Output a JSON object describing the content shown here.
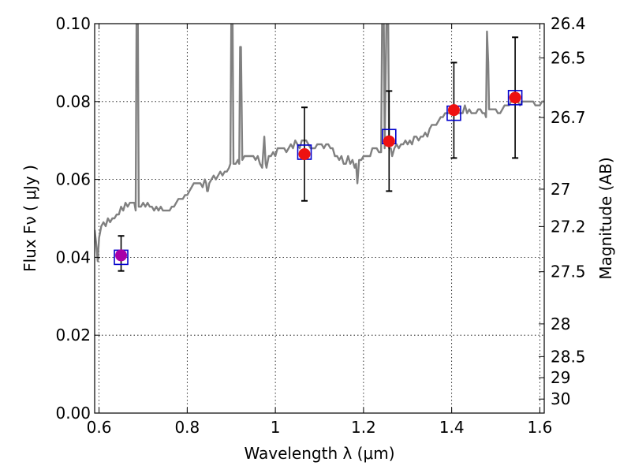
{
  "chart_data": {
    "type": "scatter",
    "xlabel": "Wavelength  λ (μm)",
    "ylabel": "Flux  Fν  ( μJy )",
    "y2label": "Magnitude (AB)",
    "xlim": [
      0.59,
      1.61
    ],
    "ylim": [
      0.0,
      0.1
    ],
    "grid": true,
    "x_ticks": [
      0.6,
      0.8,
      1.0,
      1.2,
      1.4,
      1.6
    ],
    "x_tick_labels": [
      "0.6",
      "0.8",
      "1",
      "1.2",
      "1.4",
      "1.6"
    ],
    "y_ticks": [
      0.0,
      0.02,
      0.04,
      0.06,
      0.08,
      0.1
    ],
    "y_tick_labels": [
      "0.00",
      "0.02",
      "0.04",
      "0.06",
      "0.08",
      "0.10"
    ],
    "y2_ticks": [
      {
        "label": "26.4",
        "flux": 0.1
      },
      {
        "label": "26.5",
        "flux": 0.0912
      },
      {
        "label": "26.7",
        "flux": 0.0759
      },
      {
        "label": "27",
        "flux": 0.0575
      },
      {
        "label": "27.2",
        "flux": 0.0479
      },
      {
        "label": "27.5",
        "flux": 0.0363
      },
      {
        "label": "28",
        "flux": 0.0229
      },
      {
        "label": "28.5",
        "flux": 0.0145
      },
      {
        "label": "29",
        "flux": 0.0091
      },
      {
        "label": "30",
        "flux": 0.0036
      }
    ],
    "model_spectrum": {
      "color": "#808080",
      "points": [
        [
          0.59,
          0.047
        ],
        [
          0.593,
          0.044
        ],
        [
          0.597,
          0.039
        ],
        [
          0.6,
          0.045
        ],
        [
          0.605,
          0.048
        ],
        [
          0.61,
          0.049
        ],
        [
          0.615,
          0.048
        ],
        [
          0.62,
          0.05
        ],
        [
          0.625,
          0.049
        ],
        [
          0.63,
          0.05
        ],
        [
          0.635,
          0.05
        ],
        [
          0.64,
          0.051
        ],
        [
          0.645,
          0.051
        ],
        [
          0.65,
          0.053
        ],
        [
          0.655,
          0.052
        ],
        [
          0.66,
          0.054
        ],
        [
          0.665,
          0.053
        ],
        [
          0.67,
          0.054
        ],
        [
          0.675,
          0.054
        ],
        [
          0.68,
          0.054
        ],
        [
          0.683,
          0.052
        ],
        [
          0.685,
          0.1
        ],
        [
          0.688,
          0.1
        ],
        [
          0.69,
          0.053
        ],
        [
          0.695,
          0.053
        ],
        [
          0.7,
          0.054
        ],
        [
          0.705,
          0.053
        ],
        [
          0.71,
          0.054
        ],
        [
          0.715,
          0.053
        ],
        [
          0.72,
          0.053
        ],
        [
          0.725,
          0.052
        ],
        [
          0.73,
          0.053
        ],
        [
          0.735,
          0.052
        ],
        [
          0.74,
          0.053
        ],
        [
          0.745,
          0.052
        ],
        [
          0.75,
          0.052
        ],
        [
          0.755,
          0.052
        ],
        [
          0.76,
          0.052
        ],
        [
          0.765,
          0.053
        ],
        [
          0.77,
          0.053
        ],
        [
          0.775,
          0.054
        ],
        [
          0.78,
          0.055
        ],
        [
          0.785,
          0.055
        ],
        [
          0.79,
          0.055
        ],
        [
          0.795,
          0.056
        ],
        [
          0.8,
          0.056
        ],
        [
          0.805,
          0.057
        ],
        [
          0.81,
          0.058
        ],
        [
          0.815,
          0.059
        ],
        [
          0.82,
          0.059
        ],
        [
          0.825,
          0.059
        ],
        [
          0.83,
          0.059
        ],
        [
          0.835,
          0.058
        ],
        [
          0.84,
          0.06
        ],
        [
          0.843,
          0.059
        ],
        [
          0.845,
          0.057
        ],
        [
          0.847,
          0.057
        ],
        [
          0.85,
          0.059
        ],
        [
          0.855,
          0.06
        ],
        [
          0.86,
          0.061
        ],
        [
          0.865,
          0.06
        ],
        [
          0.87,
          0.061
        ],
        [
          0.875,
          0.062
        ],
        [
          0.88,
          0.061
        ],
        [
          0.885,
          0.062
        ],
        [
          0.89,
          0.062
        ],
        [
          0.895,
          0.063
        ],
        [
          0.898,
          0.064
        ],
        [
          0.9,
          0.1
        ],
        [
          0.903,
          0.1
        ],
        [
          0.905,
          0.064
        ],
        [
          0.91,
          0.064
        ],
        [
          0.915,
          0.065
        ],
        [
          0.918,
          0.064
        ],
        [
          0.92,
          0.094
        ],
        [
          0.922,
          0.094
        ],
        [
          0.925,
          0.065
        ],
        [
          0.93,
          0.066
        ],
        [
          0.935,
          0.066
        ],
        [
          0.94,
          0.066
        ],
        [
          0.945,
          0.066
        ],
        [
          0.95,
          0.066
        ],
        [
          0.955,
          0.065
        ],
        [
          0.96,
          0.066
        ],
        [
          0.965,
          0.064
        ],
        [
          0.97,
          0.063
        ],
        [
          0.975,
          0.071
        ],
        [
          0.978,
          0.064
        ],
        [
          0.98,
          0.063
        ],
        [
          0.985,
          0.066
        ],
        [
          0.99,
          0.066
        ],
        [
          0.995,
          0.067
        ],
        [
          1.0,
          0.066
        ],
        [
          1.005,
          0.068
        ],
        [
          1.01,
          0.068
        ],
        [
          1.015,
          0.068
        ],
        [
          1.02,
          0.068
        ],
        [
          1.025,
          0.067
        ],
        [
          1.03,
          0.068
        ],
        [
          1.035,
          0.069
        ],
        [
          1.04,
          0.068
        ],
        [
          1.045,
          0.07
        ],
        [
          1.05,
          0.069
        ],
        [
          1.055,
          0.068
        ],
        [
          1.06,
          0.07
        ],
        [
          1.065,
          0.07
        ],
        [
          1.07,
          0.07
        ],
        [
          1.075,
          0.069
        ],
        [
          1.08,
          0.068
        ],
        [
          1.085,
          0.068
        ],
        [
          1.09,
          0.068
        ],
        [
          1.095,
          0.069
        ],
        [
          1.1,
          0.069
        ],
        [
          1.105,
          0.069
        ],
        [
          1.11,
          0.068
        ],
        [
          1.115,
          0.069
        ],
        [
          1.12,
          0.069
        ],
        [
          1.125,
          0.068
        ],
        [
          1.13,
          0.068
        ],
        [
          1.135,
          0.066
        ],
        [
          1.14,
          0.066
        ],
        [
          1.145,
          0.065
        ],
        [
          1.15,
          0.066
        ],
        [
          1.155,
          0.064
        ],
        [
          1.16,
          0.064
        ],
        [
          1.165,
          0.066
        ],
        [
          1.17,
          0.064
        ],
        [
          1.175,
          0.065
        ],
        [
          1.18,
          0.063
        ],
        [
          1.183,
          0.064
        ],
        [
          1.186,
          0.059
        ],
        [
          1.19,
          0.065
        ],
        [
          1.195,
          0.065
        ],
        [
          1.2,
          0.066
        ],
        [
          1.205,
          0.066
        ],
        [
          1.21,
          0.066
        ],
        [
          1.215,
          0.066
        ],
        [
          1.22,
          0.068
        ],
        [
          1.225,
          0.068
        ],
        [
          1.23,
          0.068
        ],
        [
          1.235,
          0.067
        ],
        [
          1.24,
          0.067
        ],
        [
          1.242,
          0.1
        ],
        [
          1.246,
          0.1
        ],
        [
          1.248,
          0.068
        ],
        [
          1.252,
          0.1
        ],
        [
          1.256,
          0.1
        ],
        [
          1.258,
          0.068
        ],
        [
          1.262,
          0.068
        ],
        [
          1.265,
          0.066
        ],
        [
          1.27,
          0.068
        ],
        [
          1.275,
          0.069
        ],
        [
          1.28,
          0.068
        ],
        [
          1.285,
          0.069
        ],
        [
          1.29,
          0.069
        ],
        [
          1.295,
          0.07
        ],
        [
          1.3,
          0.069
        ],
        [
          1.305,
          0.07
        ],
        [
          1.31,
          0.069
        ],
        [
          1.315,
          0.071
        ],
        [
          1.32,
          0.071
        ],
        [
          1.325,
          0.07
        ],
        [
          1.33,
          0.071
        ],
        [
          1.335,
          0.071
        ],
        [
          1.34,
          0.072
        ],
        [
          1.345,
          0.071
        ],
        [
          1.35,
          0.073
        ],
        [
          1.355,
          0.074
        ],
        [
          1.36,
          0.074
        ],
        [
          1.365,
          0.074
        ],
        [
          1.37,
          0.075
        ],
        [
          1.375,
          0.076
        ],
        [
          1.38,
          0.076
        ],
        [
          1.385,
          0.077
        ],
        [
          1.39,
          0.077
        ],
        [
          1.395,
          0.077
        ],
        [
          1.4,
          0.077
        ],
        [
          1.405,
          0.078
        ],
        [
          1.41,
          0.078
        ],
        [
          1.415,
          0.077
        ],
        [
          1.42,
          0.077
        ],
        [
          1.425,
          0.077
        ],
        [
          1.43,
          0.079
        ],
        [
          1.435,
          0.077
        ],
        [
          1.44,
          0.078
        ],
        [
          1.445,
          0.077
        ],
        [
          1.45,
          0.077
        ],
        [
          1.455,
          0.077
        ],
        [
          1.46,
          0.078
        ],
        [
          1.465,
          0.078
        ],
        [
          1.47,
          0.077
        ],
        [
          1.475,
          0.077
        ],
        [
          1.478,
          0.076
        ],
        [
          1.48,
          0.098
        ],
        [
          1.483,
          0.09
        ],
        [
          1.485,
          0.078
        ],
        [
          1.49,
          0.078
        ],
        [
          1.495,
          0.078
        ],
        [
          1.5,
          0.078
        ],
        [
          1.505,
          0.077
        ],
        [
          1.51,
          0.077
        ],
        [
          1.515,
          0.078
        ],
        [
          1.52,
          0.079
        ],
        [
          1.525,
          0.079
        ],
        [
          1.53,
          0.079
        ],
        [
          1.535,
          0.08
        ],
        [
          1.54,
          0.08
        ],
        [
          1.545,
          0.08
        ],
        [
          1.55,
          0.08
        ],
        [
          1.555,
          0.079
        ],
        [
          1.56,
          0.08
        ],
        [
          1.565,
          0.08
        ],
        [
          1.57,
          0.08
        ],
        [
          1.575,
          0.08
        ],
        [
          1.58,
          0.08
        ],
        [
          1.585,
          0.08
        ],
        [
          1.59,
          0.079
        ],
        [
          1.595,
          0.079
        ],
        [
          1.6,
          0.079
        ],
        [
          1.605,
          0.08
        ],
        [
          1.61,
          0.08
        ]
      ]
    },
    "series": [
      {
        "marker": "square-open",
        "color": "#0000cc",
        "points": [
          [
            0.65,
            0.04
          ],
          [
            1.066,
            0.067
          ],
          [
            1.258,
            0.071
          ],
          [
            1.405,
            0.077
          ],
          [
            1.544,
            0.081
          ]
        ]
      },
      {
        "marker": "circle-filled",
        "points": [
          {
            "x": 0.65,
            "y": 0.0405,
            "yerr_low": 0.0365,
            "yerr_high": 0.0455,
            "color": "#a800a8"
          },
          {
            "x": 1.066,
            "y": 0.0665,
            "yerr_low": 0.0545,
            "yerr_high": 0.0785,
            "color": "#ee1111"
          },
          {
            "x": 1.258,
            "y": 0.0698,
            "yerr_low": 0.057,
            "yerr_high": 0.0827,
            "color": "#ee1111"
          },
          {
            "x": 1.405,
            "y": 0.0778,
            "yerr_low": 0.0655,
            "yerr_high": 0.09,
            "color": "#ee1111"
          },
          {
            "x": 1.544,
            "y": 0.081,
            "yerr_low": 0.0655,
            "yerr_high": 0.0965,
            "color": "#ee1111"
          }
        ]
      }
    ]
  }
}
